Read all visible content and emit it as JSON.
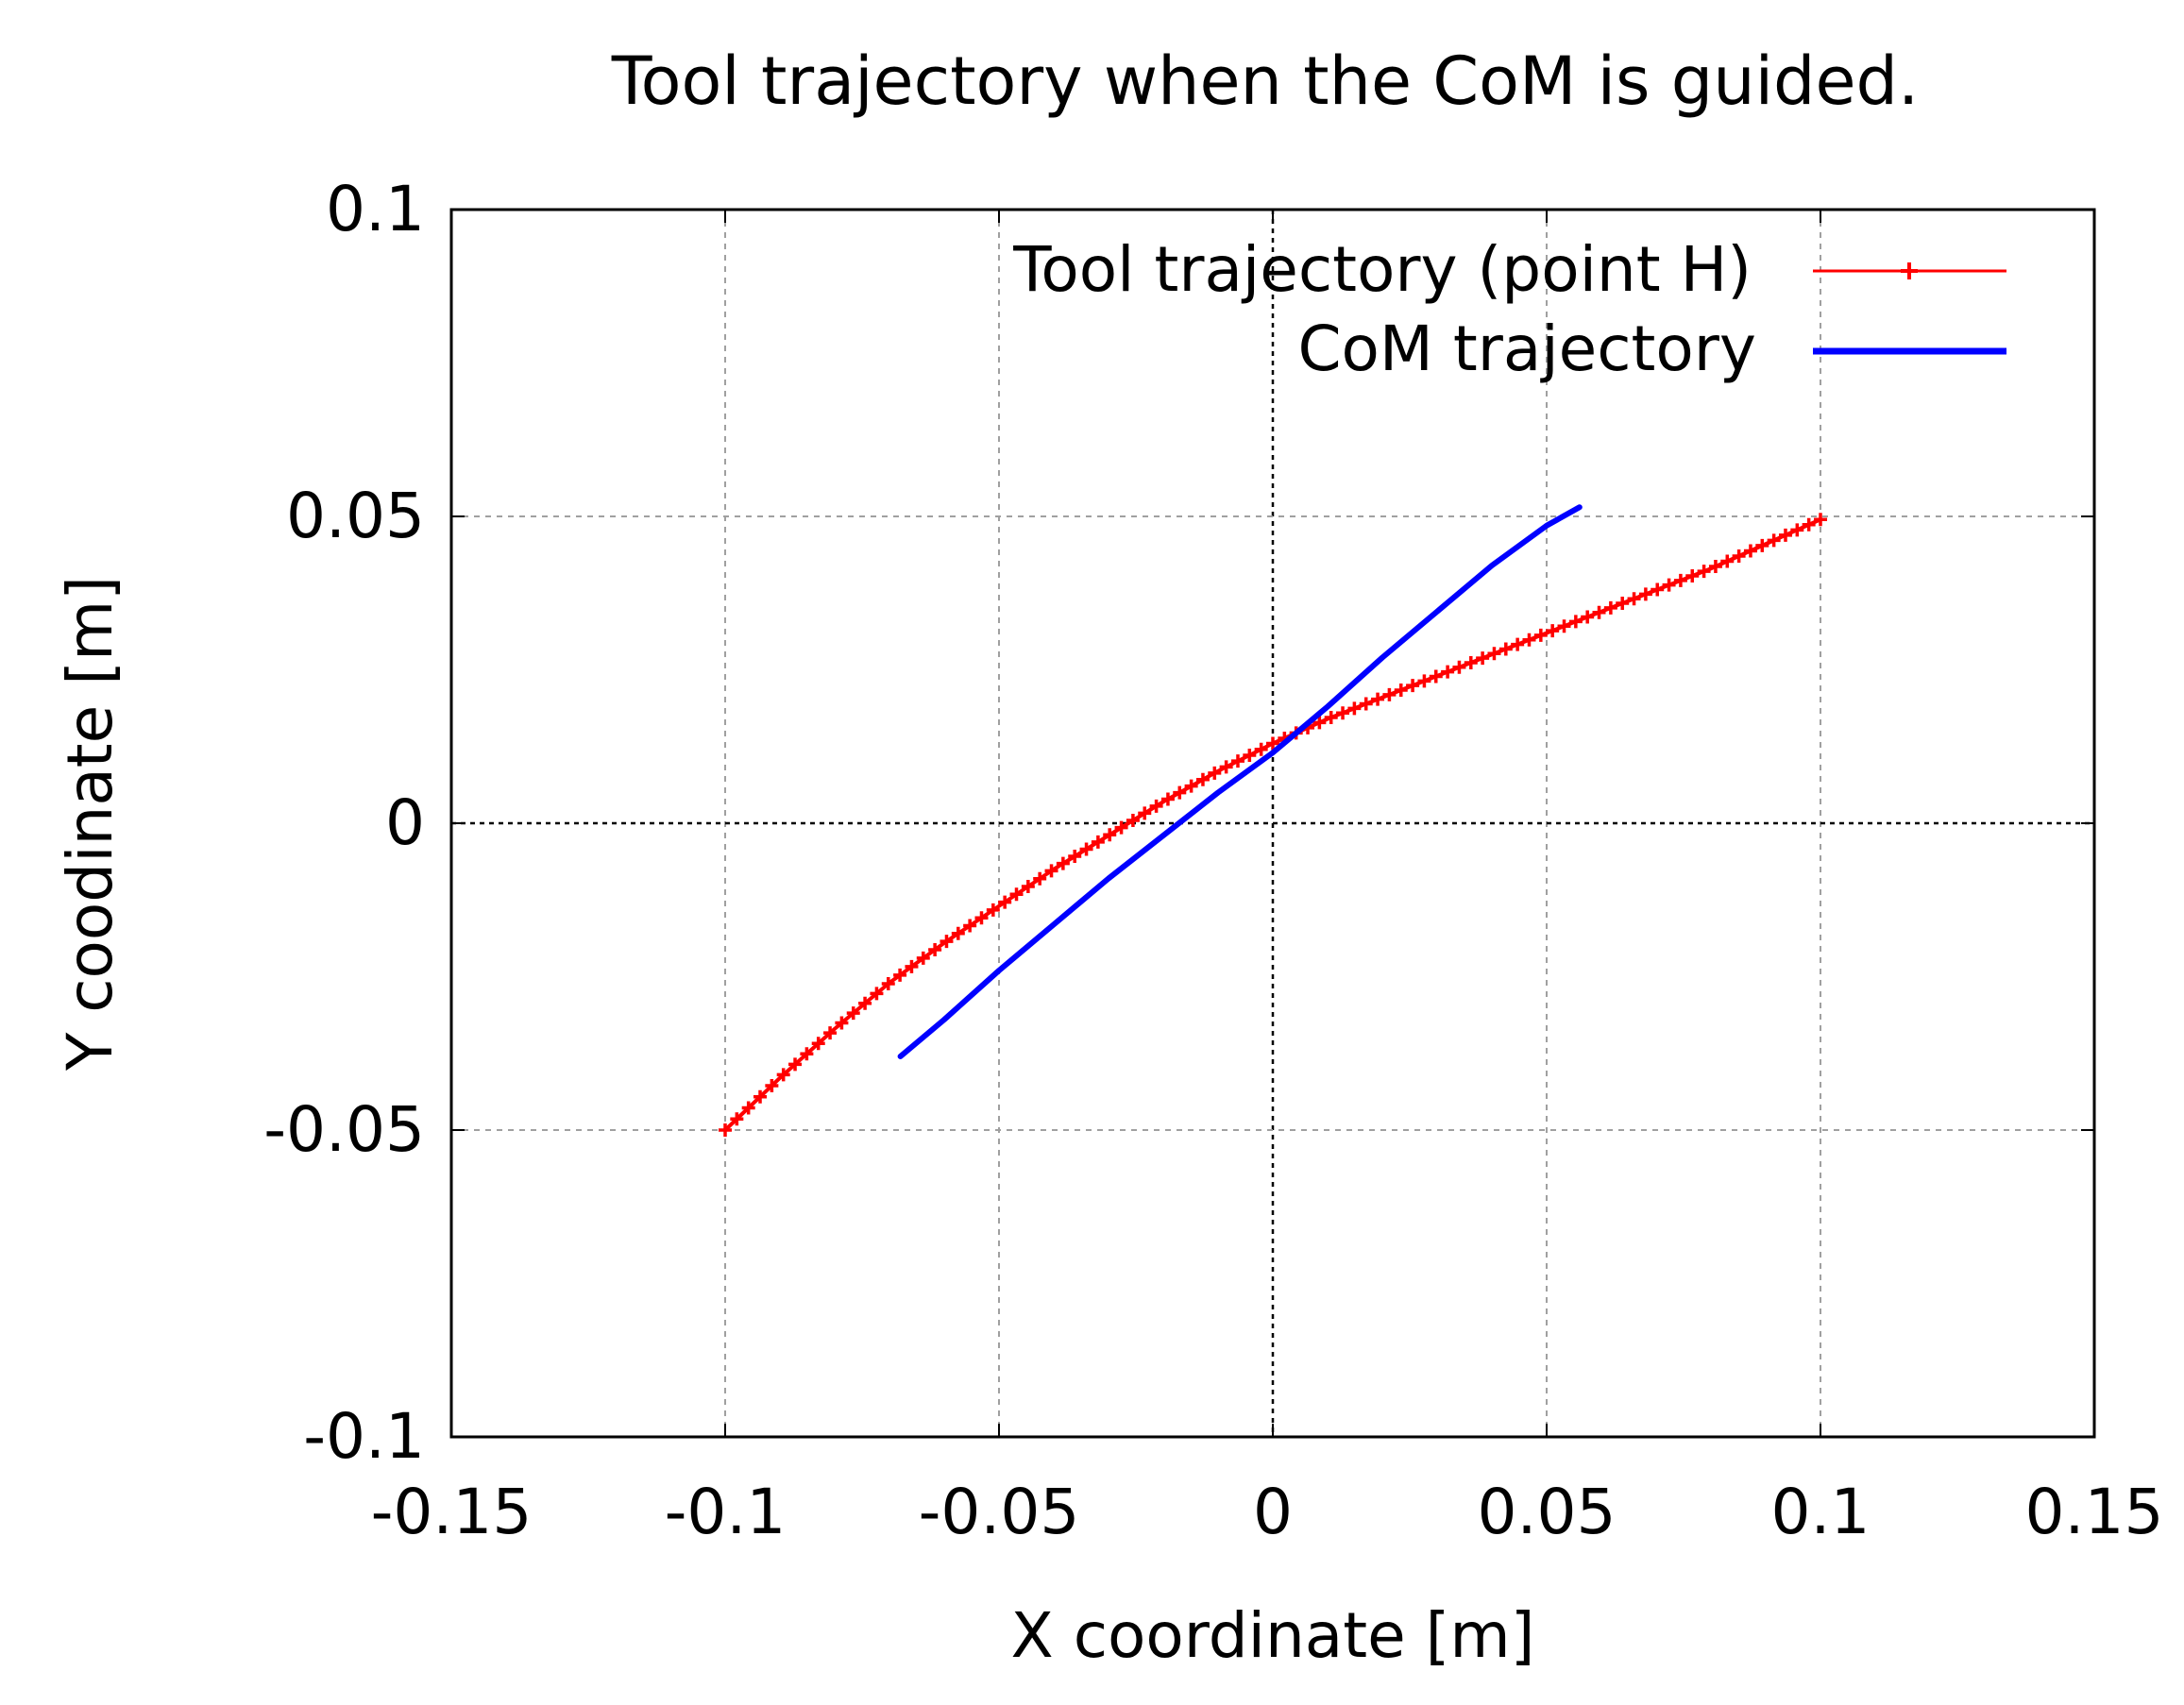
{
  "chart_data": {
    "type": "line",
    "title": "Tool trajectory when the CoM is guided.",
    "xlabel": "X coordinate [m]",
    "ylabel": "Y coodinate [m]",
    "xlim": [
      -0.15,
      0.15
    ],
    "ylim": [
      -0.1,
      0.1
    ],
    "xticks": [
      -0.15,
      -0.1,
      -0.05,
      0,
      0.05,
      0.1,
      0.15
    ],
    "xtick_labels": [
      "-0.15",
      "-0.1",
      "-0.05",
      "0",
      "0.05",
      "0.1",
      "0.15"
    ],
    "yticks": [
      -0.1,
      -0.05,
      0,
      0.05,
      0.1
    ],
    "ytick_labels": [
      "-0.1",
      "-0.05",
      "0",
      "0.05",
      "0.1"
    ],
    "grid": true,
    "legend_position": "top-right",
    "series": [
      {
        "name": "Tool trajectory (point H)",
        "color": "#ff0000",
        "marker": "plus",
        "x": [
          -0.1,
          -0.09,
          -0.08,
          -0.07,
          -0.06,
          -0.05,
          -0.04,
          -0.03,
          -0.02,
          -0.01,
          0.0,
          0.01,
          0.02,
          0.03,
          0.04,
          0.05,
          0.06,
          0.07,
          0.08,
          0.09,
          0.1
        ],
        "y": [
          -0.05,
          -0.0415,
          -0.0335,
          -0.026,
          -0.0195,
          -0.0135,
          -0.0075,
          -0.002,
          0.0035,
          0.0085,
          0.013,
          0.017,
          0.0205,
          0.024,
          0.0275,
          0.031,
          0.0345,
          0.038,
          0.0415,
          0.0455,
          0.0495
        ]
      },
      {
        "name": "CoM trajectory",
        "color": "#0000ff",
        "marker": "none",
        "x": [
          -0.068,
          -0.06,
          -0.05,
          -0.04,
          -0.03,
          -0.02,
          -0.01,
          0.0,
          0.01,
          0.02,
          0.03,
          0.04,
          0.05,
          0.056
        ],
        "y": [
          -0.038,
          -0.032,
          -0.024,
          -0.0165,
          -0.009,
          -0.002,
          0.005,
          0.0115,
          0.019,
          0.027,
          0.0345,
          0.042,
          0.0485,
          0.0515
        ]
      }
    ]
  }
}
